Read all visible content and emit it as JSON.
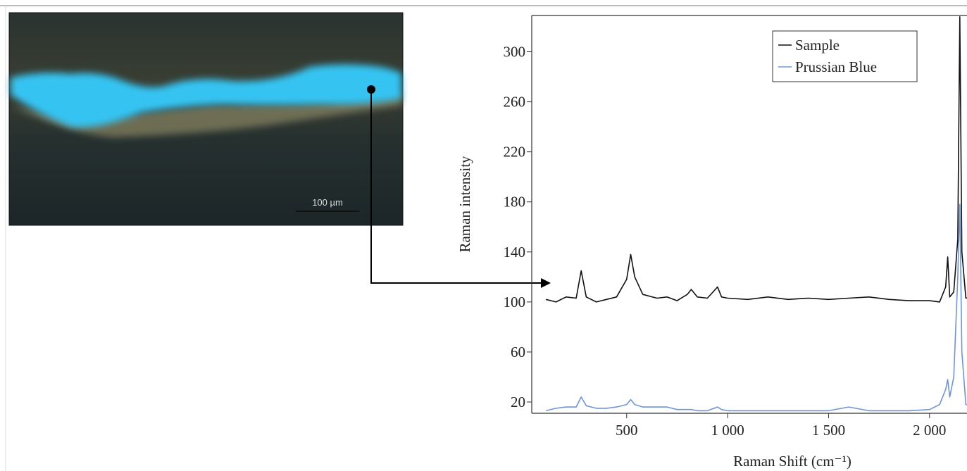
{
  "scale_bar_label": "100 µm",
  "chart_data": {
    "type": "line",
    "ylabel": "Raman intensity",
    "xlabel": "Raman Shift (cm⁻¹)",
    "x": [
      100,
      150,
      200,
      250,
      275,
      300,
      350,
      400,
      450,
      500,
      520,
      540,
      580,
      650,
      700,
      750,
      800,
      820,
      850,
      900,
      950,
      970,
      1000,
      1100,
      1200,
      1300,
      1400,
      1500,
      1600,
      1700,
      1800,
      1900,
      2000,
      2050,
      2080,
      2090,
      2100,
      2120,
      2140,
      2150,
      2160,
      2180,
      2200
    ],
    "series": [
      {
        "name": "Sample",
        "color": "#111111",
        "values": [
          102,
          100,
          104,
          103,
          125,
          104,
          100,
          102,
          104,
          118,
          138,
          120,
          106,
          103,
          104,
          101,
          106,
          110,
          104,
          103,
          112,
          104,
          103,
          102,
          104,
          102,
          103,
          102,
          103,
          104,
          102,
          101,
          101,
          100,
          112,
          136,
          104,
          108,
          150,
          328,
          140,
          103,
          104
        ]
      },
      {
        "name": "Prussian Blue",
        "color": "#6f95d8",
        "values": [
          13,
          15,
          16,
          16,
          24,
          17,
          15,
          15,
          16,
          18,
          22,
          18,
          16,
          16,
          16,
          14,
          14,
          14,
          13,
          13,
          16,
          14,
          13,
          13,
          13,
          13,
          13,
          13,
          16,
          13,
          13,
          13,
          14,
          18,
          30,
          38,
          24,
          40,
          120,
          178,
          60,
          18,
          17
        ]
      }
    ],
    "xlim": [
      30,
      2210
    ],
    "ylim": [
      11,
      329
    ],
    "xticks": [
      500,
      {
        "value": 1000,
        "label": "1 000"
      },
      {
        "value": 1500,
        "label": "1 500"
      },
      {
        "value": 2000,
        "label": "2 000"
      }
    ],
    "yticks": [
      20,
      60,
      100,
      140,
      180,
      220,
      260,
      300
    ],
    "legend": "upper right"
  }
}
